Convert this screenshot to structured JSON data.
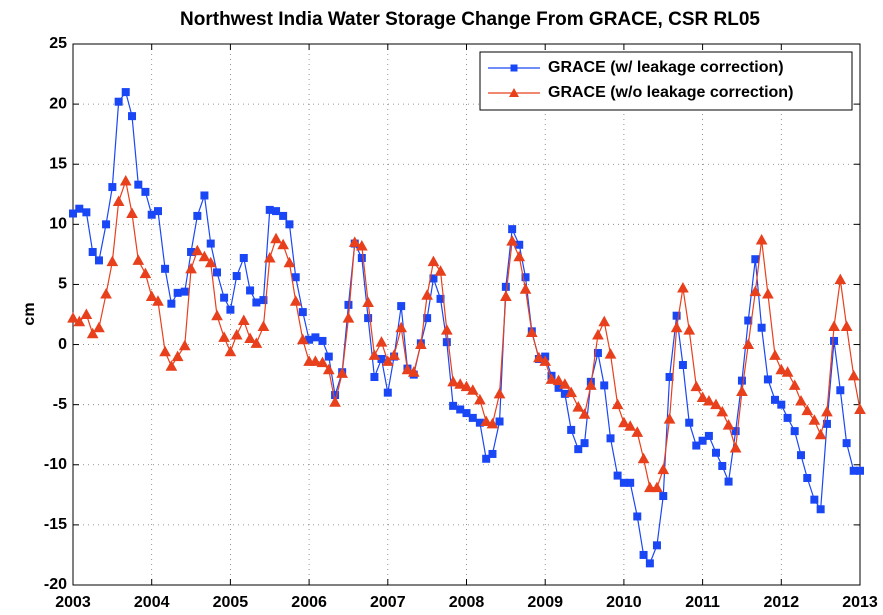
{
  "chart_data": {
    "type": "line",
    "title": "Northwest India Water Storage Change From GRACE, CSR RL05",
    "ylabel": "cm",
    "x": [
      2003,
      2003.08,
      2003.17,
      2003.25,
      2003.33,
      2003.42,
      2003.5,
      2003.58,
      2003.67,
      2003.75,
      2003.83,
      2003.92,
      2004,
      2004.08,
      2004.17,
      2004.25,
      2004.33,
      2004.42,
      2004.5,
      2004.58,
      2004.67,
      2004.75,
      2004.83,
      2004.92,
      2005,
      2005.08,
      2005.17,
      2005.25,
      2005.33,
      2005.42,
      2005.5,
      2005.58,
      2005.67,
      2005.75,
      2005.83,
      2005.92,
      2006,
      2006.08,
      2006.17,
      2006.25,
      2006.33,
      2006.42,
      2006.5,
      2006.58,
      2006.67,
      2006.75,
      2006.83,
      2006.92,
      2007,
      2007.08,
      2007.17,
      2007.25,
      2007.33,
      2007.42,
      2007.5,
      2007.58,
      2007.67,
      2007.75,
      2007.83,
      2007.92,
      2008,
      2008.08,
      2008.17,
      2008.25,
      2008.33,
      2008.42,
      2008.5,
      2008.58,
      2008.67,
      2008.75,
      2008.83,
      2008.92,
      2009,
      2009.08,
      2009.17,
      2009.25,
      2009.33,
      2009.42,
      2009.5,
      2009.58,
      2009.67,
      2009.75,
      2009.83,
      2009.92,
      2010,
      2010.08,
      2010.17,
      2010.25,
      2010.33,
      2010.42,
      2010.5,
      2010.58,
      2010.67,
      2010.75,
      2010.83,
      2010.92,
      2011,
      2011.08,
      2011.17,
      2011.25,
      2011.33,
      2011.42,
      2011.5,
      2011.58,
      2011.67,
      2011.75,
      2011.83,
      2011.92,
      2012,
      2012.08,
      2012.17,
      2012.25,
      2012.33,
      2012.42,
      2012.5,
      2012.58,
      2012.67,
      2012.75,
      2012.83,
      2012.92,
      2013
    ],
    "series": [
      {
        "name": "GRACE (w/ leakage correction)",
        "color": "#1a47f5",
        "marker": "square",
        "values": [
          10.9,
          11.3,
          11.0,
          7.7,
          7.0,
          10.0,
          13.1,
          20.2,
          21.0,
          19.0,
          13.3,
          12.7,
          10.8,
          11.1,
          6.3,
          3.4,
          4.3,
          4.4,
          7.7,
          10.7,
          12.4,
          8.4,
          6.0,
          3.9,
          2.9,
          5.7,
          7.2,
          4.5,
          3.5,
          3.7,
          11.2,
          11.1,
          10.7,
          10.0,
          5.6,
          2.7,
          0.4,
          0.6,
          0.3,
          -1.0,
          -4.2,
          -2.3,
          3.3,
          8.4,
          7.2,
          2.2,
          -2.7,
          -1.2,
          -4.0,
          -1.0,
          3.2,
          -2.0,
          -2.5,
          0.1,
          2.2,
          5.5,
          3.8,
          0.2,
          -5.1,
          -5.4,
          -5.7,
          -6.1,
          -6.5,
          -9.5,
          -9.1,
          -6.4,
          4.8,
          9.6,
          8.3,
          5.6,
          1.1,
          -1.2,
          -1.0,
          -2.6,
          -3.6,
          -4.1,
          -7.1,
          -8.7,
          -8.2,
          -3.1,
          -0.7,
          -3.4,
          -7.8,
          -10.9,
          -11.5,
          -11.5,
          -14.3,
          -17.5,
          -18.2,
          -16.7,
          -12.6,
          -2.7,
          2.4,
          -1.7,
          -6.5,
          -8.4,
          -8.0,
          -7.6,
          -9.0,
          -10.1,
          -11.4,
          -7.2,
          -3.0,
          2.0,
          7.1,
          1.4,
          -2.9,
          -4.6,
          -5.0,
          -6.1,
          -7.2,
          -9.2,
          -11.1,
          -12.9,
          -13.7,
          -6.6,
          0.3,
          -3.8,
          -8.2,
          -10.5,
          -10.5
        ]
      },
      {
        "name": "GRACE (w/o leakage correction)",
        "color": "#e8401c",
        "marker": "triangle",
        "values": [
          2.2,
          1.9,
          2.5,
          0.9,
          1.4,
          4.2,
          6.9,
          11.9,
          13.6,
          10.9,
          7.0,
          5.9,
          4.0,
          3.6,
          -0.6,
          -1.8,
          -1.0,
          -0.1,
          6.3,
          7.8,
          7.3,
          6.8,
          2.4,
          0.6,
          -0.6,
          0.8,
          2.0,
          0.5,
          0.1,
          1.5,
          7.2,
          8.8,
          8.3,
          6.8,
          3.6,
          0.4,
          -1.4,
          -1.4,
          -1.5,
          -2.1,
          -4.8,
          -2.4,
          2.2,
          8.5,
          8.2,
          3.5,
          -0.9,
          0.2,
          -1.4,
          -0.9,
          1.4,
          -2.1,
          -2.3,
          0.0,
          4.1,
          6.9,
          6.1,
          1.2,
          -3.1,
          -3.3,
          -3.5,
          -3.8,
          -4.6,
          -6.4,
          -6.6,
          -4.1,
          4.0,
          8.6,
          7.3,
          4.6,
          1.0,
          -1.1,
          -1.4,
          -2.9,
          -3.0,
          -3.3,
          -4.0,
          -5.2,
          -5.8,
          -3.4,
          0.8,
          1.9,
          -0.8,
          -5.0,
          -6.5,
          -6.8,
          -7.3,
          -9.5,
          -11.9,
          -11.9,
          -10.4,
          -6.2,
          1.4,
          4.7,
          1.2,
          -3.5,
          -4.4,
          -4.7,
          -5.0,
          -5.6,
          -6.7,
          -8.6,
          -3.9,
          0.0,
          4.4,
          8.7,
          4.2,
          -0.9,
          -2.1,
          -2.3,
          -3.4,
          -4.7,
          -5.5,
          -6.3,
          -7.5,
          -5.6,
          1.5,
          5.4,
          1.5,
          -2.6,
          -5.4
        ]
      }
    ],
    "xlim": [
      2003,
      2013
    ],
    "xticks": [
      2003,
      2004,
      2005,
      2006,
      2007,
      2008,
      2009,
      2010,
      2011,
      2012,
      2013
    ],
    "ylim": [
      -20,
      25
    ],
    "yticks": [
      -20,
      -15,
      -10,
      -5,
      0,
      5,
      10,
      15,
      20,
      25
    ],
    "grid": true,
    "legend": "upper right"
  }
}
